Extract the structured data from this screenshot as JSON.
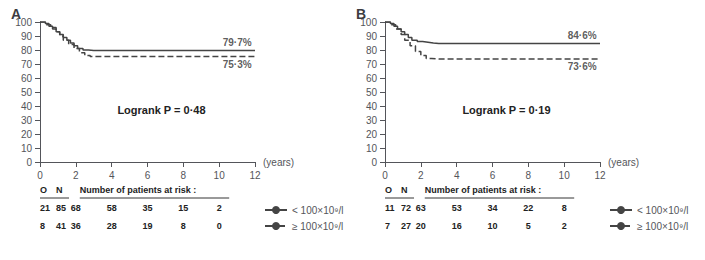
{
  "chart_data": [
    {
      "type": "step",
      "title": "A",
      "xlabel": "(years)",
      "xlim": [
        0,
        12
      ],
      "ylim": [
        0,
        100
      ],
      "xticks": [
        0,
        2,
        4,
        6,
        8,
        10,
        12
      ],
      "yticks": [
        0,
        10,
        20,
        30,
        40,
        50,
        60,
        70,
        80,
        90,
        100
      ],
      "grid": false,
      "legend": "right",
      "series": [
        {
          "name": "< 100×10⁹/l",
          "color": "#444444",
          "line_style": "solid",
          "x": [
            0,
            0.3,
            0.5,
            0.7,
            0.9,
            1.1,
            1.3,
            1.5,
            1.7,
            1.9,
            2.1,
            2.4,
            2.7,
            3.0,
            3.5,
            4.0,
            5.0,
            6.0,
            7.0,
            8.0,
            9.0,
            10.0,
            12.0
          ],
          "values": [
            100,
            99,
            97,
            95,
            93,
            91,
            89,
            87,
            85,
            83,
            81,
            80,
            79.7,
            79.7,
            79.7,
            79.7,
            79.7,
            79.7,
            79.7,
            79.7,
            79.7,
            79.7,
            79.7
          ]
        },
        {
          "name": "≥ 100×10⁹/l",
          "color": "#444444",
          "line_style": "dashed",
          "x": [
            0,
            0.3,
            0.6,
            0.9,
            1.1,
            1.3,
            1.6,
            1.9,
            2.2,
            2.5,
            2.8,
            3.2,
            4.0,
            5.0,
            6.0,
            7.0,
            8.0,
            9.0,
            10.0,
            12.0
          ],
          "values": [
            100,
            98,
            96,
            93,
            90,
            87,
            84,
            81,
            78,
            76,
            75.3,
            75.3,
            75.3,
            75.3,
            75.3,
            75.3,
            75.3,
            75.3,
            75.3,
            75.3
          ]
        }
      ],
      "annotations": [
        {
          "text": "Logrank P = 0·48"
        },
        {
          "text": "79·7%",
          "y": 79.7
        },
        {
          "text": "75·3%",
          "y": 75.3
        }
      ],
      "risk_table": {
        "header": [
          "O",
          "N",
          "Number of patients at risk :"
        ],
        "times": [
          2,
          4,
          6,
          8,
          10
        ],
        "rows": [
          {
            "O": 21,
            "N": 85,
            "at_risk": [
              68,
              58,
              35,
              15,
              2
            ]
          },
          {
            "O": 8,
            "N": 41,
            "at_risk": [
              36,
              28,
              19,
              8,
              0
            ]
          }
        ]
      }
    },
    {
      "type": "step",
      "title": "B",
      "xlabel": "(years)",
      "xlim": [
        0,
        12
      ],
      "ylim": [
        0,
        100
      ],
      "xticks": [
        0,
        2,
        4,
        6,
        8,
        10,
        12
      ],
      "yticks": [
        0,
        10,
        20,
        30,
        40,
        50,
        60,
        70,
        80,
        90,
        100
      ],
      "grid": false,
      "legend": "right",
      "series": [
        {
          "name": "< 100×10⁹/l",
          "color": "#444444",
          "line_style": "solid",
          "x": [
            0,
            0.3,
            0.5,
            0.7,
            0.9,
            1.1,
            1.3,
            1.5,
            1.8,
            2.1,
            2.4,
            2.7,
            3.0,
            3.5,
            4.0,
            5.0,
            6.0,
            7.0,
            8.0,
            9.0,
            10.0,
            12.0
          ],
          "values": [
            100,
            99,
            97,
            95,
            93,
            91,
            89,
            87,
            86,
            85.5,
            85,
            84.6,
            84.6,
            84.6,
            84.6,
            84.6,
            84.6,
            84.6,
            84.6,
            84.6,
            84.6,
            84.6
          ]
        },
        {
          "name": "≥ 100×10⁹/l",
          "color": "#444444",
          "line_style": "dashed",
          "x": [
            0,
            0.3,
            0.6,
            0.9,
            1.1,
            1.4,
            1.7,
            2.0,
            2.3,
            2.6,
            3.0,
            4.0,
            5.0,
            6.0,
            7.0,
            8.0,
            9.0,
            10.0,
            12.0
          ],
          "values": [
            100,
            98,
            95,
            91,
            87,
            83,
            79,
            76,
            74,
            73.6,
            73.6,
            73.6,
            73.6,
            73.6,
            73.6,
            73.6,
            73.6,
            73.6,
            73.6
          ]
        }
      ],
      "annotations": [
        {
          "text": "Logrank P = 0·19"
        },
        {
          "text": "84·6%",
          "y": 84.6
        },
        {
          "text": "73·6%",
          "y": 73.6
        }
      ],
      "risk_table": {
        "header": [
          "O",
          "N",
          "Number of patients at risk :"
        ],
        "times": [
          2,
          4,
          6,
          8,
          10
        ],
        "rows": [
          {
            "O": 11,
            "N": 72,
            "at_risk": [
              63,
              53,
              34,
              22,
              8
            ]
          },
          {
            "O": 7,
            "N": 27,
            "at_risk": [
              20,
              16,
              10,
              5,
              2
            ]
          }
        ]
      }
    }
  ]
}
